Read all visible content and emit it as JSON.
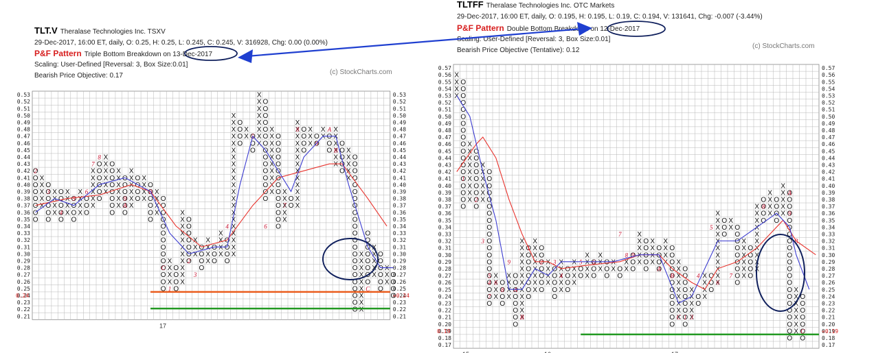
{
  "left": {
    "symbol": "TLT.V",
    "name": "Theralase Technologies Inc.  TSXV",
    "quote": "29-Dec-2017, 16:00 ET, daily, O: 0.25, H: 0.25, L: 0.245, C: 0.245, V: 316928, Chg: 0.00 (0.00%)",
    "pattern_label": "P&F Pattern",
    "pattern_text": "Triple Bottom Breakdown on 13-Dec-2017",
    "scaling": "Scaling: User-Defined [Reversal: 3, Box Size:0.01]",
    "objective": "Bearish Price Objective: 0.17",
    "watermark": "(c) StockCharts.com",
    "current_price_label": "0.24",
    "year_label": "17"
  },
  "right": {
    "symbol": "TLTFF",
    "name": "Theralase Technologies Inc.  OTC Markets",
    "quote": "29-Dec-2017, 16:00 ET, daily, O: 0.195, H: 0.195, L: 0.19, C: 0.194, V: 131641, Chg: -0.007 (-3.44%)",
    "pattern_label": "P&F Pattern",
    "pattern_text": "Double Bottom Breakdown on 12-Dec-2017",
    "scaling": "Scaling: User-Defined [Reversal: 3, Box Size:0.01]",
    "objective": "Bearish Price Objective (Tentative): 0.12",
    "watermark": "(c) StockCharts.com",
    "current_price_label": "0.19",
    "year_labels": [
      "15",
      "16",
      "17"
    ]
  },
  "colors": {
    "x_o": "#111111",
    "month": "#c8102e",
    "ma_red": "#e8322c",
    "ma_blue": "#3b3bd0",
    "support_orange": "#ea5b1c",
    "support_green": "#229922",
    "annotation": "#0f1f5c",
    "arrow": "#1f3fd0",
    "grid": "#b7b7b7"
  },
  "chart_data": [
    {
      "type": "point-and-figure",
      "title": "TLT.V",
      "ylim": [
        0.21,
        0.53
      ],
      "box_size": 0.01,
      "reversal": 3,
      "columns": [
        {
          "t": "O",
          "lo": 0.35,
          "hi": 0.42
        },
        {
          "t": "X",
          "lo": 0.37,
          "hi": 0.41
        },
        {
          "t": "O",
          "lo": 0.35,
          "hi": 0.4
        },
        {
          "t": "X",
          "lo": 0.36,
          "hi": 0.39
        },
        {
          "t": "O",
          "lo": 0.35,
          "hi": 0.39
        },
        {
          "t": "X",
          "lo": 0.36,
          "hi": 0.39
        },
        {
          "t": "O",
          "lo": 0.35,
          "hi": 0.38
        },
        {
          "t": "X",
          "lo": 0.36,
          "hi": 0.39
        },
        {
          "t": "O",
          "lo": 0.36,
          "hi": 0.38
        },
        {
          "t": "X",
          "lo": 0.37,
          "hi": 0.42
        },
        {
          "t": "O",
          "lo": 0.38,
          "hi": 0.43
        },
        {
          "t": "X",
          "lo": 0.39,
          "hi": 0.44
        },
        {
          "t": "O",
          "lo": 0.36,
          "hi": 0.43
        },
        {
          "t": "X",
          "lo": 0.37,
          "hi": 0.42
        },
        {
          "t": "O",
          "lo": 0.36,
          "hi": 0.41
        },
        {
          "t": "X",
          "lo": 0.37,
          "hi": 0.42
        },
        {
          "t": "O",
          "lo": 0.38,
          "hi": 0.41
        },
        {
          "t": "X",
          "lo": 0.38,
          "hi": 0.41
        },
        {
          "t": "O",
          "lo": 0.35,
          "hi": 0.4
        },
        {
          "t": "X",
          "lo": 0.36,
          "hi": 0.39
        },
        {
          "t": "O",
          "lo": 0.25,
          "hi": 0.38
        },
        {
          "t": "X",
          "lo": 0.26,
          "hi": 0.29
        },
        {
          "t": "O",
          "lo": 0.25,
          "hi": 0.28
        },
        {
          "t": "X",
          "lo": 0.26,
          "hi": 0.36
        },
        {
          "t": "O",
          "lo": 0.29,
          "hi": 0.35
        },
        {
          "t": "X",
          "lo": 0.3,
          "hi": 0.32
        },
        {
          "t": "O",
          "lo": 0.28,
          "hi": 0.31
        },
        {
          "t": "X",
          "lo": 0.29,
          "hi": 0.32
        },
        {
          "t": "O",
          "lo": 0.29,
          "hi": 0.31
        },
        {
          "t": "X",
          "lo": 0.3,
          "hi": 0.33
        },
        {
          "t": "O",
          "lo": 0.29,
          "hi": 0.32
        },
        {
          "t": "X",
          "lo": 0.3,
          "hi": 0.5
        },
        {
          "t": "O",
          "lo": 0.46,
          "hi": 0.49
        },
        {
          "t": "X",
          "lo": 0.47,
          "hi": 0.48
        },
        {
          "t": "O",
          "lo": 0.45,
          "hi": 0.47
        },
        {
          "t": "X",
          "lo": 0.46,
          "hi": 0.53
        },
        {
          "t": "O",
          "lo": 0.38,
          "hi": 0.52
        },
        {
          "t": "X",
          "lo": 0.39,
          "hi": 0.48
        },
        {
          "t": "O",
          "lo": 0.34,
          "hi": 0.47
        },
        {
          "t": "X",
          "lo": 0.35,
          "hi": 0.39
        },
        {
          "t": "O",
          "lo": 0.37,
          "hi": 0.38
        },
        {
          "t": "X",
          "lo": 0.37,
          "hi": 0.49
        },
        {
          "t": "O",
          "lo": 0.45,
          "hi": 0.48
        },
        {
          "t": "X",
          "lo": 0.46,
          "hi": 0.48
        },
        {
          "t": "O",
          "lo": 0.46,
          "hi": 0.47
        },
        {
          "t": "X",
          "lo": 0.47,
          "hi": 0.48
        },
        {
          "t": "O",
          "lo": 0.45,
          "hi": 0.47
        },
        {
          "t": "X",
          "lo": 0.43,
          "hi": 0.48
        },
        {
          "t": "O",
          "lo": 0.42,
          "hi": 0.46
        },
        {
          "t": "X",
          "lo": 0.41,
          "hi": 0.45
        },
        {
          "t": "O",
          "lo": 0.22,
          "hi": 0.44
        },
        {
          "t": "X",
          "lo": 0.22,
          "hi": 0.3
        },
        {
          "t": "O",
          "lo": 0.26,
          "hi": 0.33
        },
        {
          "t": "X",
          "lo": 0.27,
          "hi": 0.31
        },
        {
          "t": "O",
          "lo": 0.25,
          "hi": 0.3
        },
        {
          "t": "X",
          "lo": 0.26,
          "hi": 0.28
        },
        {
          "t": "O",
          "lo": 0.24,
          "hi": 0.27
        }
      ],
      "month_marks": [
        [
          "2",
          0,
          0.42
        ],
        [
          "3",
          2,
          0.39
        ],
        [
          "4",
          4,
          0.36
        ],
        [
          "5",
          6,
          0.38
        ],
        [
          "6",
          8,
          0.39
        ],
        [
          "7",
          9,
          0.43
        ],
        [
          "8",
          10,
          0.44
        ],
        [
          "9",
          14,
          0.38
        ],
        [
          "A",
          14,
          0.37
        ],
        [
          "B",
          18,
          0.39
        ],
        [
          "C",
          20,
          0.28
        ],
        [
          "1",
          21,
          0.25
        ],
        [
          "2",
          24,
          0.29
        ],
        [
          "3",
          25,
          0.27
        ],
        [
          "4",
          30,
          0.34
        ],
        [
          "5",
          34,
          0.47
        ],
        [
          "6",
          36,
          0.34
        ],
        [
          "7",
          39,
          0.37
        ],
        [
          "8",
          41,
          0.48
        ],
        [
          "9",
          44,
          0.46
        ],
        [
          "A",
          46,
          0.48
        ],
        [
          "B",
          47,
          0.45
        ],
        [
          "C",
          52,
          0.25
        ]
      ],
      "moving_avg_red": [
        [
          0,
          0.37
        ],
        [
          5,
          0.38
        ],
        [
          10,
          0.385
        ],
        [
          15,
          0.4
        ],
        [
          18,
          0.39
        ],
        [
          22,
          0.34
        ],
        [
          26,
          0.31
        ],
        [
          30,
          0.32
        ],
        [
          34,
          0.37
        ],
        [
          38,
          0.41
        ],
        [
          42,
          0.42
        ],
        [
          46,
          0.43
        ],
        [
          48,
          0.43
        ],
        [
          52,
          0.38
        ],
        [
          55,
          0.34
        ]
      ],
      "moving_avg_blue": [
        [
          0,
          0.36
        ],
        [
          3,
          0.38
        ],
        [
          6,
          0.37
        ],
        [
          10,
          0.4
        ],
        [
          14,
          0.41
        ],
        [
          18,
          0.39
        ],
        [
          21,
          0.33
        ],
        [
          24,
          0.3
        ],
        [
          28,
          0.31
        ],
        [
          30,
          0.31
        ],
        [
          32,
          0.4
        ],
        [
          34,
          0.47
        ],
        [
          36,
          0.45
        ],
        [
          40,
          0.39
        ],
        [
          42,
          0.44
        ],
        [
          45,
          0.47
        ],
        [
          47,
          0.47
        ],
        [
          49,
          0.4
        ],
        [
          52,
          0.31
        ],
        [
          54,
          0.28
        ],
        [
          56,
          0.28
        ]
      ],
      "support_levels": [
        {
          "y": 0.245,
          "color": "orange"
        },
        {
          "y": 0.221,
          "color": "green"
        }
      ],
      "current_price": 0.24,
      "year_label": "17"
    },
    {
      "type": "point-and-figure",
      "title": "TLTFF",
      "ylim": [
        0.17,
        0.57
      ],
      "box_size": 0.01,
      "reversal": 3,
      "columns": [
        {
          "t": "X",
          "lo": 0.53,
          "hi": 0.56
        },
        {
          "t": "O",
          "lo": 0.37,
          "hi": 0.55
        },
        {
          "t": "X",
          "lo": 0.38,
          "hi": 0.46
        },
        {
          "t": "O",
          "lo": 0.37,
          "hi": 0.45
        },
        {
          "t": "X",
          "lo": 0.38,
          "hi": 0.43
        },
        {
          "t": "O",
          "lo": 0.23,
          "hi": 0.42
        },
        {
          "t": "X",
          "lo": 0.24,
          "hi": 0.27
        },
        {
          "t": "O",
          "lo": 0.23,
          "hi": 0.26
        },
        {
          "t": "X",
          "lo": 0.24,
          "hi": 0.27
        },
        {
          "t": "O",
          "lo": 0.2,
          "hi": 0.27
        },
        {
          "t": "X",
          "lo": 0.21,
          "hi": 0.32
        },
        {
          "t": "O",
          "lo": 0.24,
          "hi": 0.31
        },
        {
          "t": "X",
          "lo": 0.25,
          "hi": 0.32
        },
        {
          "t": "O",
          "lo": 0.25,
          "hi": 0.31
        },
        {
          "t": "X",
          "lo": 0.26,
          "hi": 0.29
        },
        {
          "t": "O",
          "lo": 0.24,
          "hi": 0.28
        },
        {
          "t": "X",
          "lo": 0.25,
          "hi": 0.29
        },
        {
          "t": "O",
          "lo": 0.25,
          "hi": 0.28
        },
        {
          "t": "X",
          "lo": 0.26,
          "hi": 0.29
        },
        {
          "t": "O",
          "lo": 0.27,
          "hi": 0.28
        },
        {
          "t": "X",
          "lo": 0.27,
          "hi": 0.3
        },
        {
          "t": "O",
          "lo": 0.27,
          "hi": 0.29
        },
        {
          "t": "X",
          "lo": 0.28,
          "hi": 0.3
        },
        {
          "t": "O",
          "lo": 0.27,
          "hi": 0.29
        },
        {
          "t": "X",
          "lo": 0.28,
          "hi": 0.29
        },
        {
          "t": "O",
          "lo": 0.27,
          "hi": 0.28
        },
        {
          "t": "X",
          "lo": 0.28,
          "hi": 0.29
        },
        {
          "t": "O",
          "lo": 0.28,
          "hi": 0.3
        },
        {
          "t": "X",
          "lo": 0.29,
          "hi": 0.33
        },
        {
          "t": "O",
          "lo": 0.28,
          "hi": 0.32
        },
        {
          "t": "X",
          "lo": 0.29,
          "hi": 0.32
        },
        {
          "t": "O",
          "lo": 0.28,
          "hi": 0.31
        },
        {
          "t": "X",
          "lo": 0.29,
          "hi": 0.32
        },
        {
          "t": "O",
          "lo": 0.2,
          "hi": 0.31
        },
        {
          "t": "X",
          "lo": 0.21,
          "hi": 0.29
        },
        {
          "t": "O",
          "lo": 0.2,
          "hi": 0.28
        },
        {
          "t": "X",
          "lo": 0.21,
          "hi": 0.25
        },
        {
          "t": "O",
          "lo": 0.23,
          "hi": 0.24
        },
        {
          "t": "X",
          "lo": 0.24,
          "hi": 0.27
        },
        {
          "t": "O",
          "lo": 0.25,
          "hi": 0.27
        },
        {
          "t": "X",
          "lo": 0.26,
          "hi": 0.36
        },
        {
          "t": "O",
          "lo": 0.33,
          "hi": 0.35
        },
        {
          "t": "X",
          "lo": 0.34,
          "hi": 0.35
        },
        {
          "t": "O",
          "lo": 0.26,
          "hi": 0.34
        },
        {
          "t": "X",
          "lo": 0.27,
          "hi": 0.32
        },
        {
          "t": "O",
          "lo": 0.27,
          "hi": 0.31
        },
        {
          "t": "X",
          "lo": 0.28,
          "hi": 0.37
        },
        {
          "t": "O",
          "lo": 0.35,
          "hi": 0.38
        },
        {
          "t": "X",
          "lo": 0.36,
          "hi": 0.39
        },
        {
          "t": "O",
          "lo": 0.35,
          "hi": 0.38
        },
        {
          "t": "X",
          "lo": 0.36,
          "hi": 0.4
        },
        {
          "t": "O",
          "lo": 0.18,
          "hi": 0.39
        },
        {
          "t": "X",
          "lo": 0.19,
          "hi": 0.25
        },
        {
          "t": "O",
          "lo": 0.18,
          "hi": 0.24
        }
      ],
      "month_marks": [
        [
          "1",
          1,
          0.41
        ],
        [
          "2",
          3,
          0.38
        ],
        [
          "3",
          4,
          0.32
        ],
        [
          "4",
          5,
          0.26
        ],
        [
          "5",
          5,
          0.27
        ],
        [
          "6",
          6,
          0.26
        ],
        [
          "7",
          5,
          0.24
        ],
        [
          "8",
          7,
          0.25
        ],
        [
          "9",
          8,
          0.29
        ],
        [
          "A",
          9,
          0.25
        ],
        [
          "B",
          10,
          0.21
        ],
        [
          "1",
          11,
          0.31
        ],
        [
          "2",
          13,
          0.29
        ],
        [
          "3",
          15,
          0.29
        ],
        [
          "4",
          16,
          0.27
        ],
        [
          "5",
          19,
          0.29
        ],
        [
          "6",
          21,
          0.29
        ],
        [
          "7",
          25,
          0.33
        ],
        [
          "8",
          26,
          0.3
        ],
        [
          "9",
          27,
          0.3
        ],
        [
          "A",
          31,
          0.28
        ],
        [
          "B",
          33,
          0.27
        ],
        [
          "C",
          34,
          0.21
        ],
        [
          "1",
          35,
          0.21
        ],
        [
          "3",
          36,
          0.21
        ],
        [
          "4",
          37,
          0.27
        ],
        [
          "5",
          39,
          0.34
        ],
        [
          "6",
          40,
          0.26
        ],
        [
          "7",
          42,
          0.27
        ],
        [
          "8",
          47,
          0.37
        ],
        [
          "9",
          51,
          0.36
        ],
        [
          "A",
          51,
          0.39
        ],
        [
          "B",
          52,
          0.32
        ],
        [
          "C",
          53,
          0.19
        ]
      ],
      "moving_avg_red": [
        [
          0,
          0.42
        ],
        [
          3,
          0.46
        ],
        [
          4,
          0.47
        ],
        [
          6,
          0.44
        ],
        [
          8,
          0.38
        ],
        [
          10,
          0.33
        ],
        [
          12,
          0.29
        ],
        [
          14,
          0.29
        ],
        [
          16,
          0.28
        ],
        [
          20,
          0.285
        ],
        [
          25,
          0.29
        ],
        [
          28,
          0.3
        ],
        [
          31,
          0.3
        ],
        [
          33,
          0.28
        ],
        [
          36,
          0.26
        ],
        [
          38,
          0.25
        ],
        [
          40,
          0.28
        ],
        [
          43,
          0.29
        ],
        [
          46,
          0.31
        ],
        [
          48,
          0.33
        ],
        [
          50,
          0.35
        ],
        [
          52,
          0.32
        ],
        [
          55,
          0.3
        ]
      ],
      "moving_avg_blue": [
        [
          0,
          0.53
        ],
        [
          2,
          0.5
        ],
        [
          4,
          0.42
        ],
        [
          6,
          0.35
        ],
        [
          8,
          0.25
        ],
        [
          10,
          0.25
        ],
        [
          12,
          0.28
        ],
        [
          14,
          0.27
        ],
        [
          16,
          0.29
        ],
        [
          20,
          0.29
        ],
        [
          24,
          0.29
        ],
        [
          28,
          0.3
        ],
        [
          31,
          0.3
        ],
        [
          34,
          0.23
        ],
        [
          36,
          0.24
        ],
        [
          40,
          0.32
        ],
        [
          43,
          0.32
        ],
        [
          46,
          0.34
        ],
        [
          49,
          0.36
        ],
        [
          51,
          0.34
        ],
        [
          52,
          0.3
        ],
        [
          54,
          0.25
        ]
      ],
      "support_levels": [
        {
          "y": 0.185,
          "color": "green"
        }
      ],
      "current_price": 0.19,
      "year_labels": [
        "15",
        "16",
        "17"
      ]
    }
  ]
}
